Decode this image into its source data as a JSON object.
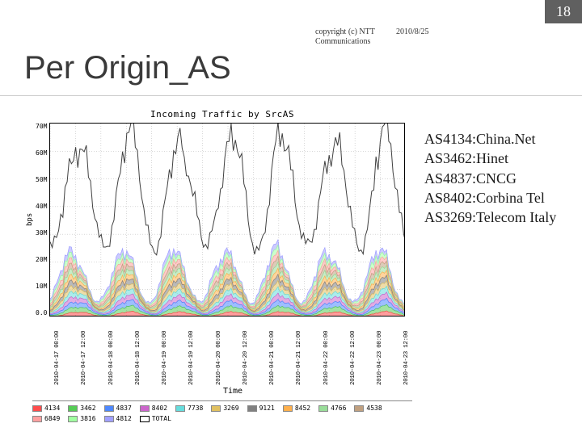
{
  "page_number": "18",
  "copyright": "copyright (c) NTT\nCommunications",
  "date": "2010/8/25",
  "title": "Per Origin_AS",
  "annotations": [
    "AS4134:China.Net",
    "AS3462:Hinet",
    "AS4837:CNCG",
    "AS8402:Corbina Tel",
    "AS3269:Telecom Italy"
  ],
  "chart": {
    "type": "line-stacked-area",
    "title": "Incoming Traffic by SrcAS",
    "xlabel": "Time",
    "ylabel": "bps",
    "background_color": "#ffffff",
    "grid_color": "#b0b0b0",
    "ylim": [
      0,
      70000000
    ],
    "yticks": [
      {
        "v": 70000000,
        "label": "70M"
      },
      {
        "v": 60000000,
        "label": "60M"
      },
      {
        "v": 50000000,
        "label": "50M"
      },
      {
        "v": 40000000,
        "label": "40M"
      },
      {
        "v": 30000000,
        "label": "30M"
      },
      {
        "v": 20000000,
        "label": "20M"
      },
      {
        "v": 10000000,
        "label": "10M"
      },
      {
        "v": 0,
        "label": "0.0"
      }
    ],
    "xticks": [
      "2010-04-17 00:00",
      "2010-04-17 12:00",
      "2010-04-18 00:00",
      "2010-04-18 12:00",
      "2010-04-19 00:00",
      "2010-04-19 12:00",
      "2010-04-20 00:00",
      "2010-04-20 12:00",
      "2010-04-21 00:00",
      "2010-04-21 12:00",
      "2010-04-22 00:00",
      "2010-04-22 12:00",
      "2010-04-23 00:00",
      "2010-04-23 12:00"
    ],
    "legend": [
      {
        "label": "4134",
        "color": "#ff4d4d"
      },
      {
        "label": "3462",
        "color": "#55cc55"
      },
      {
        "label": "4837",
        "color": "#4d88ff"
      },
      {
        "label": "8402",
        "color": "#cc66cc"
      },
      {
        "label": "7738",
        "color": "#66dddd"
      },
      {
        "label": "3269",
        "color": "#e0c060"
      },
      {
        "label": "9121",
        "color": "#808080"
      },
      {
        "label": "8452",
        "color": "#ffb04d"
      },
      {
        "label": "4766",
        "color": "#99dd99"
      },
      {
        "label": "4538",
        "color": "#c0a080"
      },
      {
        "label": "6849",
        "color": "#ffa0a0"
      },
      {
        "label": "3816",
        "color": "#a0ffa0"
      },
      {
        "label": "4812",
        "color": "#a0a0ff"
      },
      {
        "label": "TOTAL",
        "color": "#000000"
      }
    ],
    "days": 7,
    "samples_per_day": 24,
    "total_peak": 65000000,
    "total_trough": 25000000,
    "stack_peak": 18000000,
    "stack_trough": 6000000
  }
}
